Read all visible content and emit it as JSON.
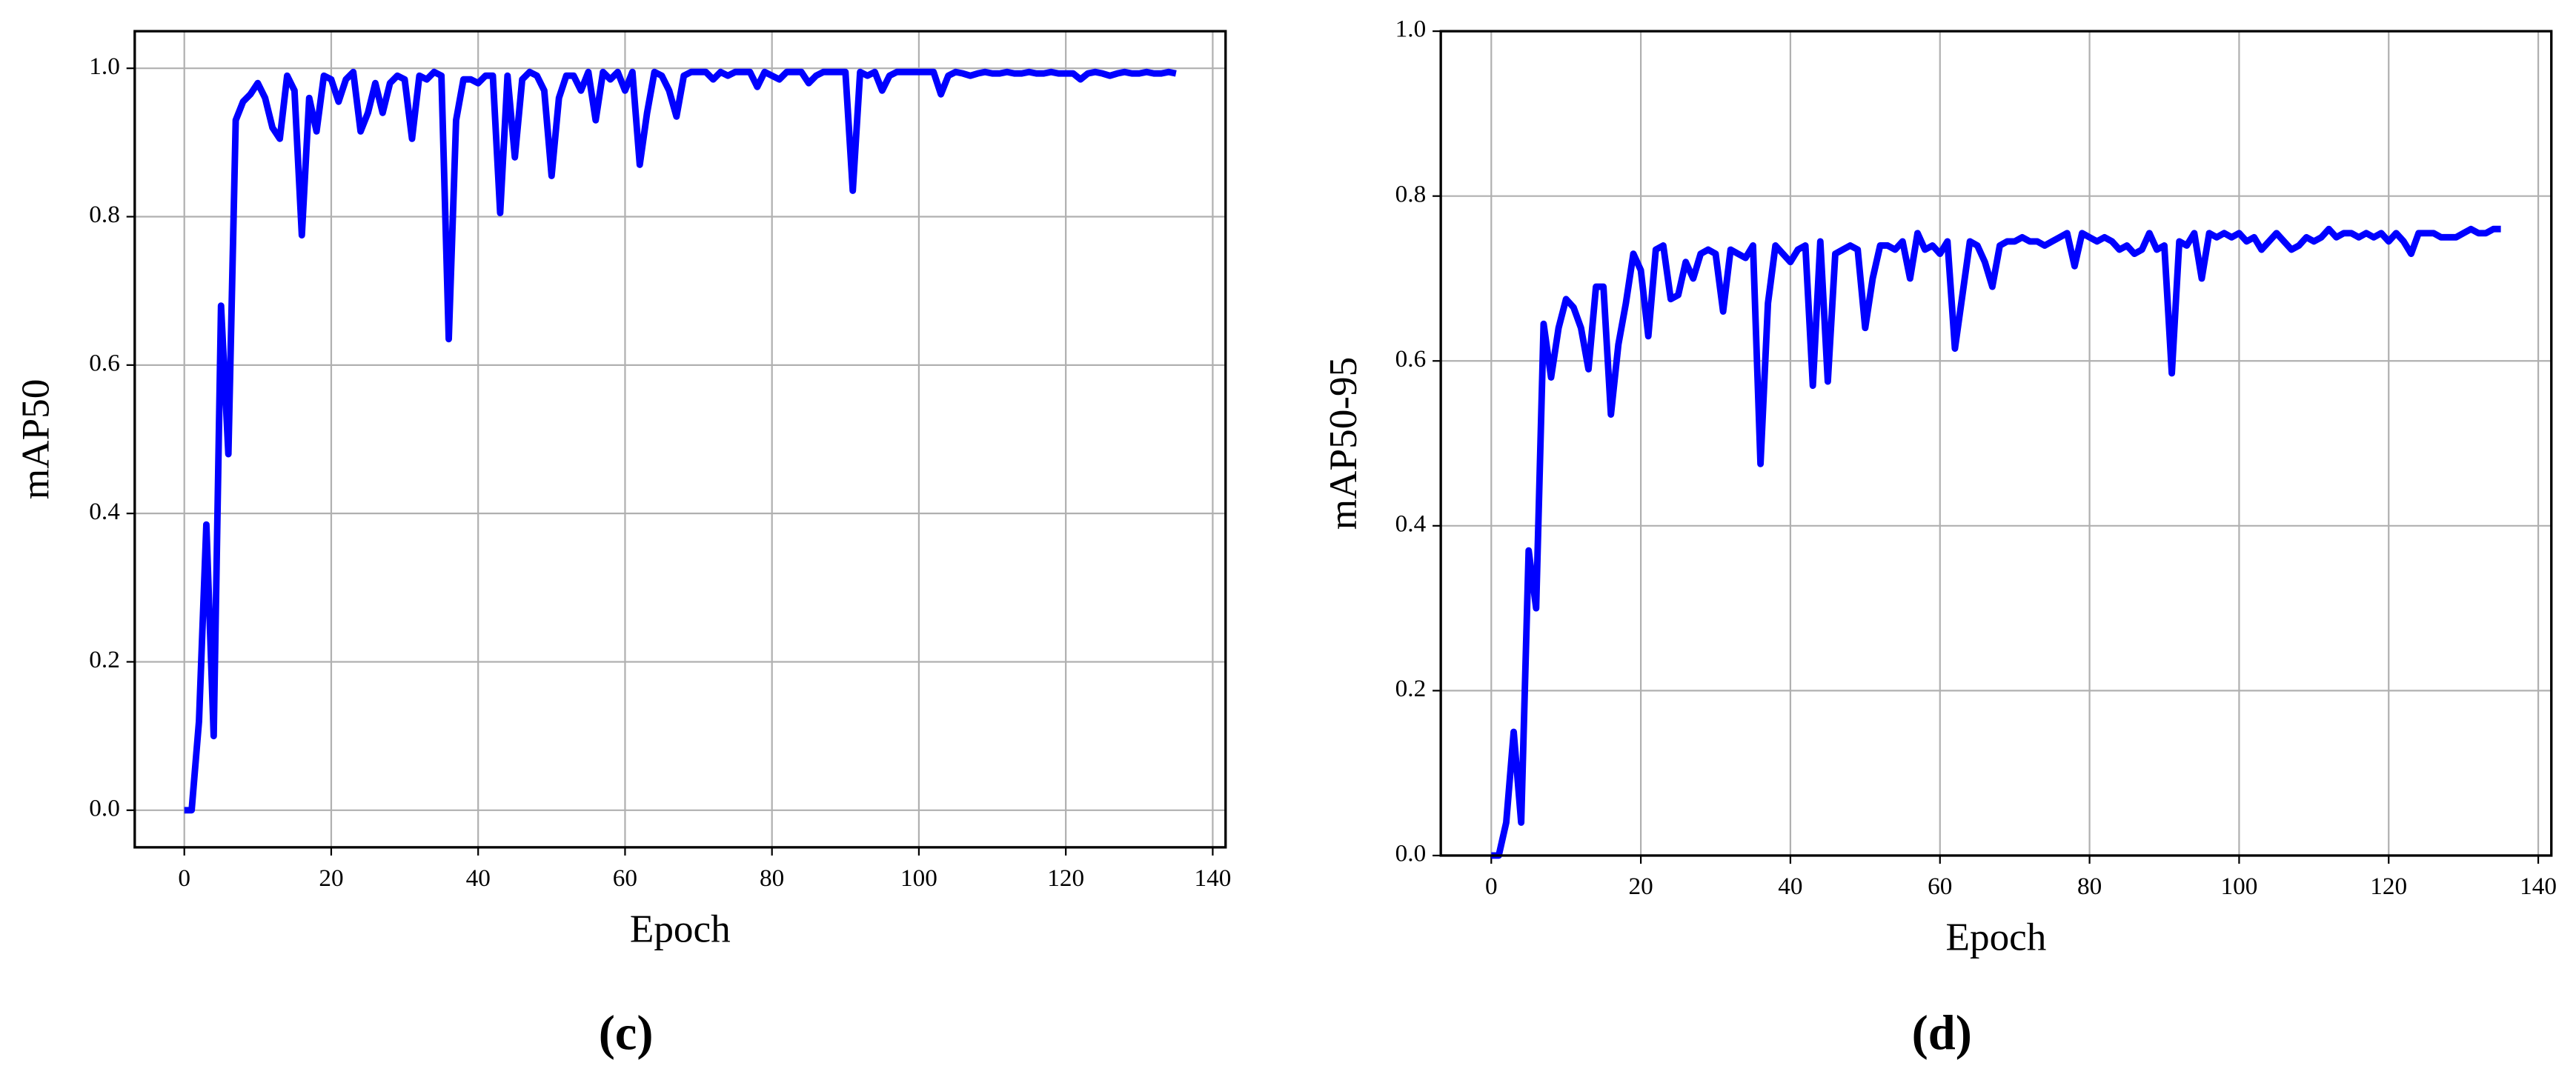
{
  "chart_data": [
    {
      "type": "line",
      "caption": "(c)",
      "x_label": "Epoch",
      "y_label": "mAP50",
      "color": "#0000ff",
      "grid": true,
      "xlim": [
        -6.75,
        141.75
      ],
      "ylim": [
        -0.05,
        1.05
      ],
      "xticks": [
        0,
        20,
        40,
        60,
        80,
        100,
        120,
        140
      ],
      "yticks": [
        {
          "value": 0,
          "label": "0.0"
        },
        {
          "value": 0.2,
          "label": "0.2"
        },
        {
          "value": 0.4,
          "label": "0.4"
        },
        {
          "value": 0.6,
          "label": "0.6"
        },
        {
          "value": 0.8,
          "label": "0.8"
        },
        {
          "value": 1,
          "label": "1.0"
        }
      ],
      "x": [
        0,
        1,
        2,
        3,
        4,
        5,
        6,
        7,
        8,
        9,
        10,
        11,
        12,
        13,
        14,
        15,
        16,
        17,
        18,
        19,
        20,
        21,
        22,
        23,
        24,
        25,
        26,
        27,
        28,
        29,
        30,
        31,
        32,
        33,
        34,
        35,
        36,
        37,
        38,
        39,
        40,
        41,
        42,
        43,
        44,
        45,
        46,
        47,
        48,
        49,
        50,
        51,
        52,
        53,
        54,
        55,
        56,
        57,
        58,
        59,
        60,
        61,
        62,
        63,
        64,
        65,
        66,
        67,
        68,
        69,
        70,
        71,
        72,
        73,
        74,
        75,
        76,
        77,
        78,
        79,
        80,
        81,
        82,
        83,
        84,
        85,
        86,
        87,
        88,
        89,
        90,
        91,
        92,
        93,
        94,
        95,
        96,
        97,
        98,
        99,
        100,
        101,
        102,
        103,
        104,
        105,
        106,
        107,
        108,
        109,
        110,
        111,
        112,
        113,
        114,
        115,
        116,
        117,
        118,
        119,
        120,
        121,
        122,
        123,
        124,
        125,
        126,
        127,
        128,
        129,
        130,
        131,
        132,
        133,
        134,
        135
      ],
      "values": [
        0,
        0,
        0.12,
        0.385,
        0.1,
        0.68,
        0.48,
        0.93,
        0.955,
        0.965,
        0.98,
        0.96,
        0.92,
        0.905,
        0.99,
        0.97,
        0.775,
        0.96,
        0.915,
        0.99,
        0.985,
        0.955,
        0.985,
        0.995,
        0.915,
        0.94,
        0.98,
        0.94,
        0.98,
        0.99,
        0.985,
        0.905,
        0.99,
        0.985,
        0.995,
        0.99,
        0.635,
        0.93,
        0.985,
        0.985,
        0.98,
        0.99,
        0.99,
        0.805,
        0.99,
        0.88,
        0.985,
        0.995,
        0.99,
        0.97,
        0.855,
        0.96,
        0.99,
        0.99,
        0.97,
        0.995,
        0.93,
        0.995,
        0.985,
        0.995,
        0.97,
        0.995,
        0.87,
        0.94,
        0.995,
        0.99,
        0.97,
        0.935,
        0.99,
        0.995,
        0.995,
        0.995,
        0.985,
        0.995,
        0.99,
        0.995,
        0.995,
        0.995,
        0.975,
        0.995,
        0.99,
        0.985,
        0.995,
        0.995,
        0.995,
        0.98,
        0.99,
        0.995,
        0.995,
        0.995,
        0.995,
        0.835,
        0.995,
        0.99,
        0.995,
        0.97,
        0.99,
        0.995,
        0.995,
        0.995,
        0.995,
        0.995,
        0.995,
        0.965,
        0.99,
        0.995,
        0.993,
        0.99,
        0.993,
        0.995,
        0.993,
        0.993,
        0.995,
        0.993,
        0.993,
        0.995,
        0.993,
        0.993,
        0.995,
        0.993,
        0.993,
        0.993,
        0.985,
        0.993,
        0.995,
        0.993,
        0.99,
        0.993,
        0.995,
        0.993,
        0.993,
        0.995,
        0.993,
        0.993,
        0.995,
        0.993
      ]
    },
    {
      "type": "line",
      "caption": "(d)",
      "x_label": "Epoch",
      "y_label": "mAP50-95",
      "color": "#0000ff",
      "grid": true,
      "xlim": [
        -6.75,
        141.75
      ],
      "ylim": [
        0,
        1
      ],
      "xticks": [
        0,
        20,
        40,
        60,
        80,
        100,
        120,
        140
      ],
      "yticks": [
        {
          "value": 0,
          "label": "0.0"
        },
        {
          "value": 0.2,
          "label": "0.2"
        },
        {
          "value": 0.4,
          "label": "0.4"
        },
        {
          "value": 0.6,
          "label": "0.6"
        },
        {
          "value": 0.8,
          "label": "0.8"
        },
        {
          "value": 1,
          "label": "1.0"
        }
      ],
      "x": [
        0,
        1,
        2,
        3,
        4,
        5,
        6,
        7,
        8,
        9,
        10,
        11,
        12,
        13,
        14,
        15,
        16,
        17,
        18,
        19,
        20,
        21,
        22,
        23,
        24,
        25,
        26,
        27,
        28,
        29,
        30,
        31,
        32,
        33,
        34,
        35,
        36,
        37,
        38,
        39,
        40,
        41,
        42,
        43,
        44,
        45,
        46,
        47,
        48,
        49,
        50,
        51,
        52,
        53,
        54,
        55,
        56,
        57,
        58,
        59,
        60,
        61,
        62,
        63,
        64,
        65,
        66,
        67,
        68,
        69,
        70,
        71,
        72,
        73,
        74,
        75,
        76,
        77,
        78,
        79,
        80,
        81,
        82,
        83,
        84,
        85,
        86,
        87,
        88,
        89,
        90,
        91,
        92,
        93,
        94,
        95,
        96,
        97,
        98,
        99,
        100,
        101,
        102,
        103,
        104,
        105,
        106,
        107,
        108,
        109,
        110,
        111,
        112,
        113,
        114,
        115,
        116,
        117,
        118,
        119,
        120,
        121,
        122,
        123,
        124,
        125,
        126,
        127,
        128,
        129,
        130,
        131,
        132,
        133,
        134,
        135
      ],
      "values": [
        0,
        0,
        0.04,
        0.15,
        0.04,
        0.37,
        0.3,
        0.645,
        0.58,
        0.64,
        0.675,
        0.665,
        0.64,
        0.59,
        0.69,
        0.69,
        0.535,
        0.62,
        0.67,
        0.73,
        0.71,
        0.63,
        0.735,
        0.74,
        0.675,
        0.68,
        0.72,
        0.7,
        0.73,
        0.735,
        0.73,
        0.66,
        0.735,
        0.73,
        0.725,
        0.74,
        0.475,
        0.67,
        0.74,
        0.73,
        0.72,
        0.735,
        0.74,
        0.57,
        0.745,
        0.575,
        0.73,
        0.735,
        0.74,
        0.735,
        0.64,
        0.7,
        0.74,
        0.74,
        0.735,
        0.745,
        0.7,
        0.755,
        0.735,
        0.74,
        0.73,
        0.745,
        0.615,
        0.68,
        0.745,
        0.74,
        0.72,
        0.69,
        0.74,
        0.745,
        0.745,
        0.75,
        0.745,
        0.745,
        0.74,
        0.745,
        0.75,
        0.755,
        0.715,
        0.755,
        0.75,
        0.745,
        0.75,
        0.745,
        0.735,
        0.74,
        0.73,
        0.735,
        0.755,
        0.735,
        0.74,
        0.585,
        0.745,
        0.74,
        0.755,
        0.7,
        0.755,
        0.75,
        0.755,
        0.75,
        0.755,
        0.745,
        0.75,
        0.735,
        0.745,
        0.755,
        0.745,
        0.735,
        0.74,
        0.75,
        0.745,
        0.75,
        0.76,
        0.75,
        0.755,
        0.755,
        0.75,
        0.755,
        0.75,
        0.755,
        0.745,
        0.755,
        0.745,
        0.73,
        0.755,
        0.755,
        0.755,
        0.75,
        0.75,
        0.75,
        0.755,
        0.76,
        0.755,
        0.755,
        0.76,
        0.76
      ]
    }
  ]
}
